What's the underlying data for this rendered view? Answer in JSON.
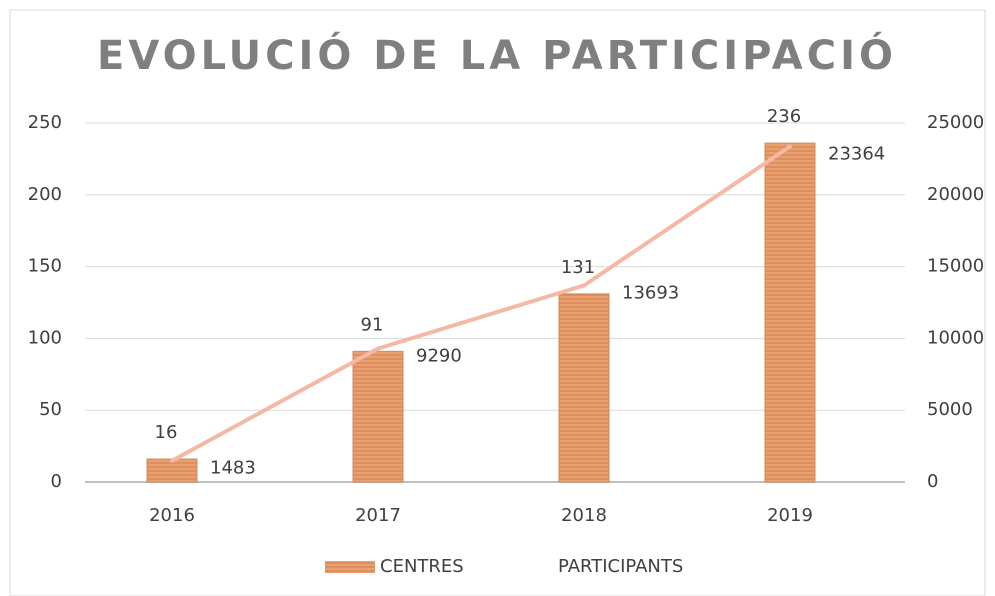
{
  "chart_data": {
    "type": "bar",
    "title": "EVOLUCIÓ DE LA PARTICIPACIÓ",
    "categories": [
      "2016",
      "2017",
      "2018",
      "2019"
    ],
    "series": [
      {
        "name": "CENTRES",
        "type": "bar",
        "color": "#e8a070",
        "values": [
          16,
          91,
          131,
          236
        ]
      },
      {
        "name": "PARTICIPANTS",
        "type": "line",
        "axis": "y2",
        "color": "#f4b9a4",
        "values": [
          1483,
          9290,
          13693,
          23364
        ]
      }
    ],
    "ylim": [
      0,
      250
    ],
    "yticks": [
      0,
      50,
      100,
      150,
      200,
      250
    ],
    "y2lim": [
      0,
      25000
    ],
    "y2ticks": [
      0,
      5000,
      10000,
      15000,
      20000,
      25000
    ],
    "grid": true,
    "legend": "bottom"
  }
}
